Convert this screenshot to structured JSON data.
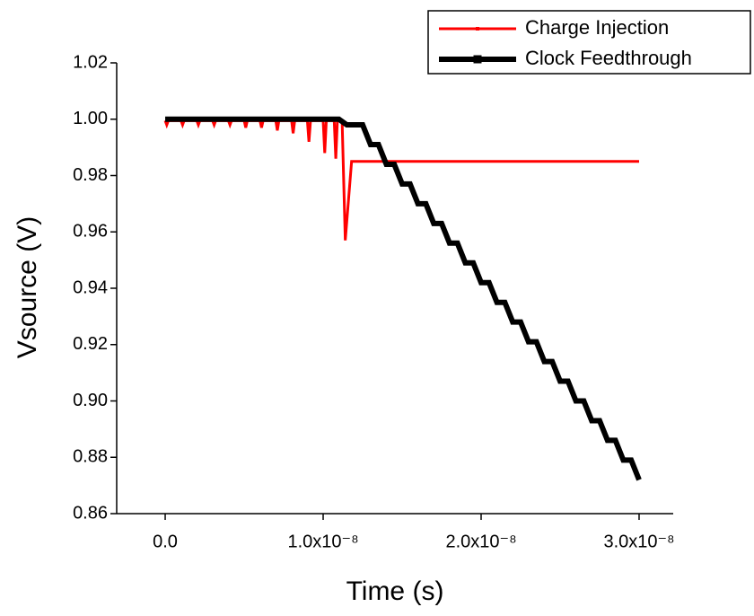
{
  "chart_data": {
    "type": "line",
    "xlabel": "Time (s)",
    "ylabel": "Vsource (V)",
    "xlim": [
      -3.07e-09,
      3.216e-08
    ],
    "ylim": [
      0.86,
      1.02
    ],
    "xticks": [
      {
        "value": 0,
        "label": "0.0"
      },
      {
        "value": 1e-08,
        "label": "1.0x10⁻⁸"
      },
      {
        "value": 2e-08,
        "label": "2.0x10⁻⁸"
      },
      {
        "value": 3e-08,
        "label": "3.0x10⁻⁸"
      }
    ],
    "yticks": [
      0.86,
      0.88,
      {
        "value": 0.9,
        "label": "0.90"
      },
      0.92,
      0.94,
      0.96,
      0.98,
      {
        "value": 1,
        "label": "1.00"
      },
      1.02
    ],
    "legend": "upper right",
    "series": [
      {
        "name": "Charge Injection",
        "color": "#ff0000",
        "x": [
          0,
          1e-10,
          2e-10,
          1e-09,
          1.1e-09,
          1.2e-09,
          2e-09,
          2.1e-09,
          2.2e-09,
          3e-09,
          3.1e-09,
          3.2e-09,
          4e-09,
          4.1e-09,
          4.2e-09,
          5e-09,
          5.1e-09,
          5.2e-09,
          6e-09,
          6.1e-09,
          6.2e-09,
          7e-09,
          7.1e-09,
          7.2e-09,
          8e-09,
          8.1e-09,
          8.2e-09,
          9e-09,
          9.1e-09,
          9.2e-09,
          1e-08,
          1.01e-08,
          1.02e-08,
          1.07e-08,
          1.08e-08,
          1.09e-08,
          1.12e-08,
          1.14e-08,
          1.18e-08,
          3e-08
        ],
        "values": [
          0.9995,
          0.998,
          0.9995,
          0.9995,
          0.998,
          0.9995,
          0.9995,
          0.998,
          0.9995,
          0.9995,
          0.998,
          0.9995,
          0.9995,
          0.998,
          0.9995,
          0.9995,
          0.997,
          0.9995,
          0.9995,
          0.997,
          0.9995,
          0.9995,
          0.996,
          0.9995,
          0.9995,
          0.995,
          0.9995,
          0.9995,
          0.992,
          0.9995,
          0.9995,
          0.988,
          0.9995,
          0.9995,
          0.986,
          0.9995,
          0.9995,
          0.957,
          0.985,
          0.985
        ]
      },
      {
        "name": "Clock Feedthrough",
        "color": "#000000",
        "x": [
          0,
          1.1e-08,
          1.15e-08,
          1.2e-08,
          1.25e-08,
          1.3e-08,
          1.35e-08,
          1.4e-08,
          1.45e-08,
          1.5e-08,
          1.55e-08,
          1.6e-08,
          1.65e-08,
          1.7e-08,
          1.75e-08,
          1.8e-08,
          1.85e-08,
          1.9e-08,
          1.95e-08,
          2e-08,
          2.05e-08,
          2.1e-08,
          2.15e-08,
          2.2e-08,
          2.25e-08,
          2.3e-08,
          2.35e-08,
          2.4e-08,
          2.45e-08,
          2.5e-08,
          2.55e-08,
          2.6e-08,
          2.65e-08,
          2.7e-08,
          2.75e-08,
          2.8e-08,
          2.85e-08,
          2.9e-08,
          2.95e-08,
          3e-08
        ],
        "values": [
          1,
          1,
          0.998,
          0.998,
          0.998,
          0.991,
          0.991,
          0.984,
          0.984,
          0.977,
          0.977,
          0.97,
          0.97,
          0.963,
          0.963,
          0.956,
          0.956,
          0.949,
          0.949,
          0.942,
          0.942,
          0.935,
          0.935,
          0.928,
          0.928,
          0.921,
          0.921,
          0.914,
          0.914,
          0.907,
          0.907,
          0.9,
          0.9,
          0.893,
          0.893,
          0.886,
          0.886,
          0.879,
          0.879,
          0.872
        ]
      }
    ]
  }
}
